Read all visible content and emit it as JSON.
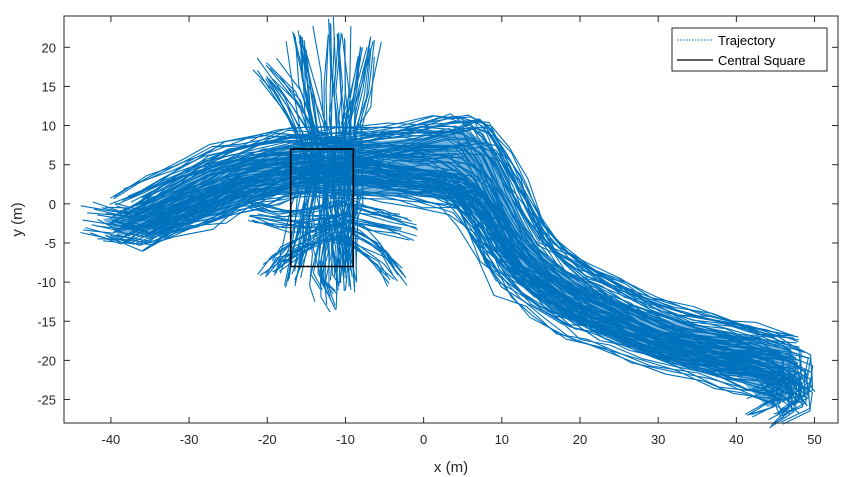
{
  "chart_data": {
    "type": "line",
    "title": "",
    "xlabel": "x (m)",
    "ylabel": "y (m)",
    "xlim": [
      -46,
      53
    ],
    "ylim": [
      -28,
      24
    ],
    "xticks": [
      -40,
      -30,
      -20,
      -10,
      0,
      10,
      20,
      30,
      40,
      50
    ],
    "yticks": [
      -25,
      -20,
      -15,
      -10,
      -5,
      0,
      5,
      10,
      15,
      20
    ],
    "xtick_labels": [
      "-40",
      "-30",
      "-20",
      "-10",
      "0",
      "10",
      "20",
      "30",
      "40",
      "50"
    ],
    "ytick_labels": [
      "-25",
      "-20",
      "-15",
      "-10",
      "-5",
      "0",
      "5",
      "10",
      "15",
      "20"
    ],
    "grid": false,
    "legend_position": "top-right",
    "series": [
      {
        "name": "Trajectory",
        "style": "dotted",
        "color": "#0072BD",
        "description_points": [
          [
            -41,
            -2
          ],
          [
            -38,
            -3
          ],
          [
            -34,
            -2
          ],
          [
            -30,
            0
          ],
          [
            -26,
            2
          ],
          [
            -22,
            4
          ],
          [
            -18,
            5
          ],
          [
            -14,
            5
          ],
          [
            -10,
            6
          ],
          [
            -6,
            6
          ],
          [
            -2,
            5
          ],
          [
            2,
            4
          ],
          [
            6,
            2
          ],
          [
            8,
            -2
          ],
          [
            11,
            -6
          ],
          [
            14,
            -9
          ],
          [
            18,
            -12
          ],
          [
            22,
            -14
          ],
          [
            27,
            -16
          ],
          [
            32,
            -18
          ],
          [
            37,
            -19
          ],
          [
            41,
            -19
          ],
          [
            45,
            -20
          ],
          [
            47,
            -22
          ],
          [
            46,
            -25
          ],
          [
            43,
            -26
          ]
        ],
        "center_paths": [
          [
            [
              -41,
              -2
            ],
            [
              -37,
              -3
            ],
            [
              -33,
              -1
            ],
            [
              -29,
              1
            ],
            [
              -25,
              3
            ],
            [
              -21,
              4
            ],
            [
              -17,
              5
            ],
            [
              -13,
              5
            ],
            [
              -9,
              5.5
            ],
            [
              -5,
              5
            ],
            [
              -1,
              4.5
            ],
            [
              3,
              4
            ],
            [
              6,
              2
            ],
            [
              8,
              -1
            ],
            [
              10,
              -5
            ],
            [
              13,
              -8
            ],
            [
              17,
              -11
            ],
            [
              21,
              -13
            ],
            [
              25,
              -15
            ],
            [
              30,
              -17
            ],
            [
              35,
              -18.5
            ],
            [
              40,
              -19
            ],
            [
              44,
              -19.5
            ],
            [
              47,
              -21
            ],
            [
              47,
              -24
            ],
            [
              44,
              -25.5
            ]
          ],
          [
            [
              -38,
              -1
            ],
            [
              -34,
              1
            ],
            [
              -30,
              3
            ],
            [
              -26,
              5
            ],
            [
              -22,
              6
            ],
            [
              -18,
              7
            ],
            [
              -14,
              7
            ],
            [
              -10,
              7
            ],
            [
              -6,
              7.5
            ],
            [
              -2,
              8
            ],
            [
              2,
              8.5
            ],
            [
              5,
              9
            ],
            [
              7,
              8
            ],
            [
              9,
              5
            ],
            [
              11,
              1
            ],
            [
              13,
              -3
            ],
            [
              16,
              -7
            ],
            [
              20,
              -10
            ],
            [
              24,
              -12
            ],
            [
              28,
              -14
            ],
            [
              33,
              -16
            ],
            [
              38,
              -17
            ],
            [
              42,
              -18
            ],
            [
              46,
              -19
            ]
          ],
          [
            [
              -36,
              -3.5
            ],
            [
              -32,
              -2
            ],
            [
              -28,
              -1
            ],
            [
              -24,
              1
            ],
            [
              -20,
              2
            ],
            [
              -16,
              3
            ],
            [
              -12,
              3
            ],
            [
              -8,
              3
            ],
            [
              -4,
              2.5
            ],
            [
              0,
              2
            ],
            [
              4,
              1
            ],
            [
              7,
              -2
            ],
            [
              9,
              -6
            ],
            [
              12,
              -10
            ],
            [
              15,
              -12
            ],
            [
              19,
              -15
            ],
            [
              23,
              -16
            ],
            [
              27,
              -18
            ],
            [
              32,
              -19.5
            ],
            [
              37,
              -21
            ],
            [
              41,
              -22
            ],
            [
              45,
              -23
            ],
            [
              47,
              -25
            ]
          ],
          [
            [
              -16,
              21
            ],
            [
              -15,
              15
            ],
            [
              -14,
              10
            ],
            [
              -13,
              6
            ],
            [
              -13,
              2
            ],
            [
              -13,
              -2
            ],
            [
              -13,
              -6
            ],
            [
              -13,
              -10
            ],
            [
              -12,
              -12
            ]
          ],
          [
            [
              -11,
              22
            ],
            [
              -11,
              15
            ],
            [
              -11,
              10
            ],
            [
              -11,
              6
            ],
            [
              -11,
              0
            ],
            [
              -10,
              -5
            ],
            [
              -10,
              -10
            ]
          ],
          [
            [
              -20,
              17
            ],
            [
              -17,
              13
            ],
            [
              -15,
              9
            ],
            [
              -14,
              5
            ],
            [
              -15,
              0
            ],
            [
              -16,
              -5
            ],
            [
              -17,
              -9
            ]
          ],
          [
            [
              -7,
              20
            ],
            [
              -8,
              14
            ],
            [
              -9,
              10
            ],
            [
              -9,
              6
            ],
            [
              -9,
              1
            ],
            [
              -10,
              -4
            ],
            [
              -10,
              -9
            ]
          ],
          [
            [
              -20,
              -8
            ],
            [
              -18,
              -6
            ],
            [
              -15,
              -4
            ],
            [
              -12,
              -3
            ],
            [
              -9,
              -4
            ],
            [
              -6,
              -6
            ],
            [
              -4,
              -9
            ]
          ],
          [
            [
              -22,
              -1
            ],
            [
              -18,
              -2
            ],
            [
              -14,
              -2
            ],
            [
              -10,
              -1
            ],
            [
              -6,
              -2
            ],
            [
              -2,
              -3
            ]
          ]
        ]
      },
      {
        "name": "Central Square",
        "style": "solid",
        "color": "#000000",
        "x": [
          -17,
          -9,
          -9,
          -17,
          -17
        ],
        "y": [
          7,
          7,
          -8,
          -8,
          7
        ]
      }
    ]
  },
  "legend": {
    "items": [
      {
        "label": "Trajectory",
        "style": "dotted",
        "color": "#0072BD"
      },
      {
        "label": "Central Square",
        "style": "solid",
        "color": "#000000"
      }
    ]
  }
}
